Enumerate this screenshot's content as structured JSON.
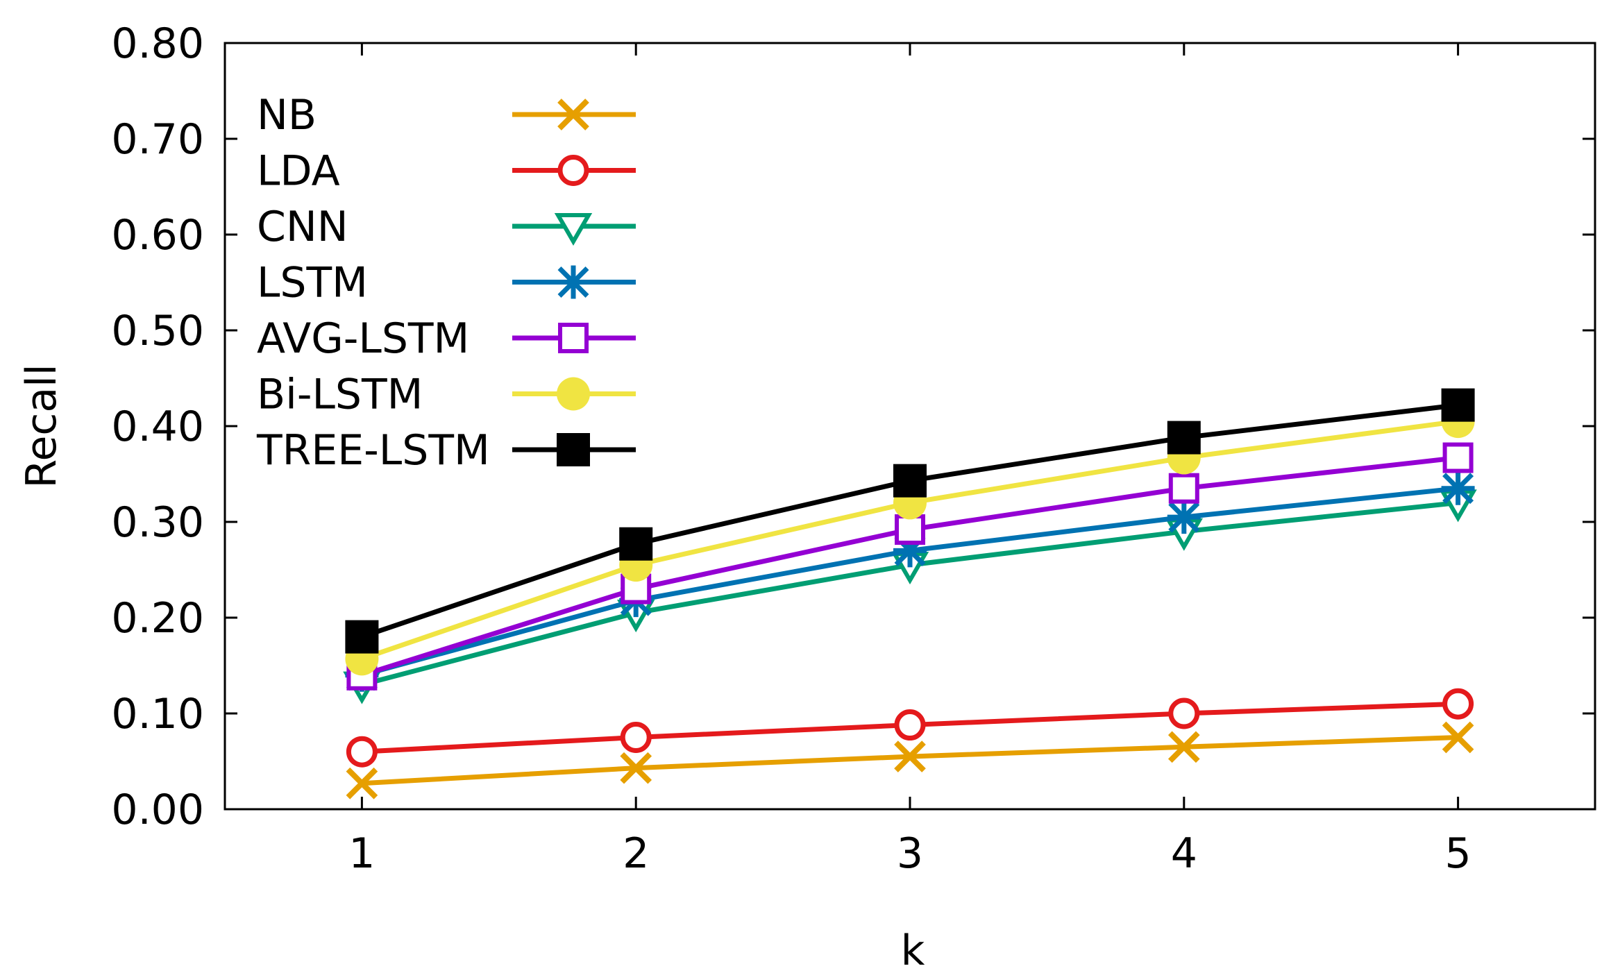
{
  "chart_data": {
    "type": "line",
    "title": "",
    "xlabel": "k",
    "ylabel": "Recall",
    "x": [
      1,
      2,
      3,
      4,
      5
    ],
    "xlim": [
      0.5,
      5.5
    ],
    "ylim": [
      0.0,
      0.8
    ],
    "xticks": [
      "1",
      "2",
      "3",
      "4",
      "5"
    ],
    "yticks": [
      "0.00",
      "0.10",
      "0.20",
      "0.30",
      "0.40",
      "0.50",
      "0.60",
      "0.70",
      "0.80"
    ],
    "grid": false,
    "legend_position": "top-left",
    "series": [
      {
        "name": "NB",
        "color": "#E69F00",
        "marker": "x",
        "values": [
          0.027,
          0.043,
          0.055,
          0.065,
          0.075
        ]
      },
      {
        "name": "LDA",
        "color": "#E41A1C",
        "marker": "open-circle",
        "values": [
          0.06,
          0.075,
          0.088,
          0.1,
          0.11
        ]
      },
      {
        "name": "CNN",
        "color": "#009E73",
        "marker": "open-triangle-down",
        "values": [
          0.13,
          0.205,
          0.255,
          0.29,
          0.32
        ]
      },
      {
        "name": "LSTM",
        "color": "#0072B2",
        "marker": "star",
        "values": [
          0.14,
          0.218,
          0.27,
          0.305,
          0.335
        ]
      },
      {
        "name": "AVG-LSTM",
        "color": "#9400D3",
        "marker": "open-square",
        "values": [
          0.14,
          0.23,
          0.292,
          0.335,
          0.367
        ]
      },
      {
        "name": "Bi-LSTM",
        "color": "#F0E442",
        "marker": "filled-circle",
        "values": [
          0.157,
          0.255,
          0.32,
          0.367,
          0.405
        ]
      },
      {
        "name": "TREE-LSTM",
        "color": "#000000",
        "marker": "filled-square",
        "values": [
          0.18,
          0.277,
          0.343,
          0.388,
          0.422
        ]
      }
    ]
  }
}
